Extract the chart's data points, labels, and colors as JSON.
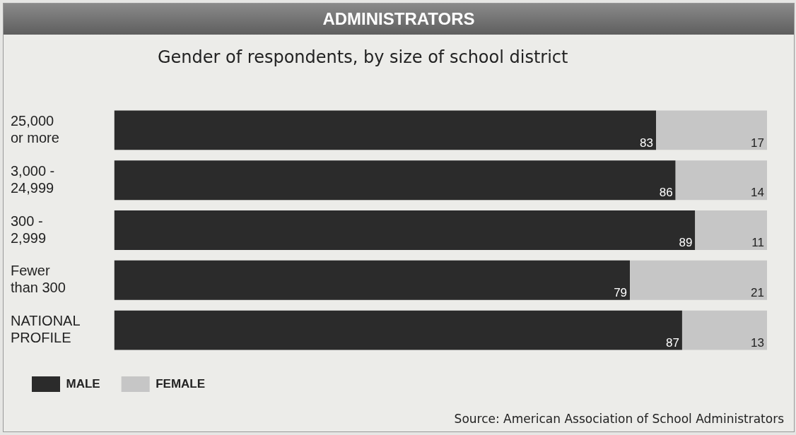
{
  "chart_data": {
    "type": "bar",
    "orientation": "horizontal",
    "stacked": true,
    "title": "ADMINISTRATORS",
    "subtitle": "Gender of respondents, by size of school district",
    "categories": [
      "25,000\nor more",
      "3,000 -\n24,999",
      "300 -\n2,999",
      "Fewer\nthan 300",
      "NATIONAL\nPROFILE"
    ],
    "series": [
      {
        "name": "MALE",
        "color": "#2b2b2b",
        "values": [
          83,
          86,
          89,
          79,
          87
        ]
      },
      {
        "name": "FEMALE",
        "color": "#c6c6c6",
        "values": [
          17,
          14,
          11,
          21,
          13
        ]
      }
    ],
    "data_labels": true,
    "legend": "bottom left",
    "tick_labels": "y",
    "annotations": [
      "Source: American Association of School Administrators"
    ]
  }
}
